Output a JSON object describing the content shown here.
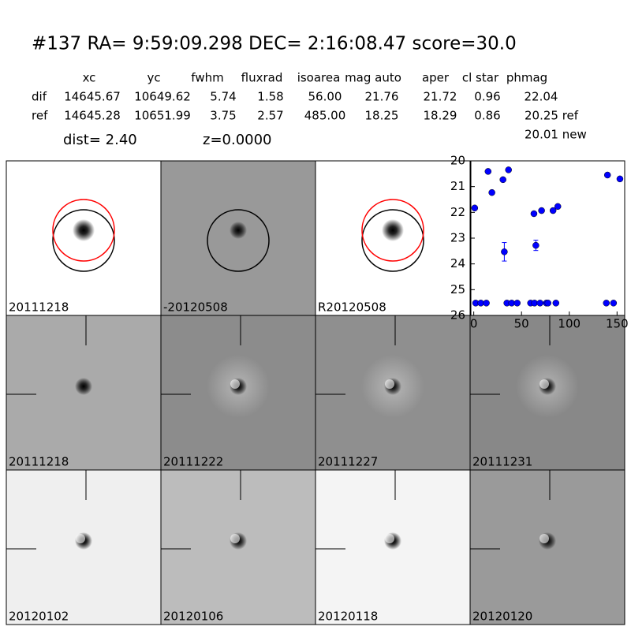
{
  "header": {
    "title": "#137   RA= 9:59:09.298 DEC= 2:16:08.47       score=30.0"
  },
  "table": {
    "columns": [
      "xc",
      "yc",
      "fwhm",
      "fluxrad",
      "isoarea",
      "mag auto",
      "aper",
      "cl star",
      "phmag"
    ],
    "rows": [
      {
        "label": "dif",
        "values": [
          "14645.67",
          "10649.62",
          "5.74",
          "1.58",
          "56.00",
          "21.76",
          "21.72",
          "0.96",
          "22.04"
        ]
      },
      {
        "label": "ref",
        "values": [
          "14645.28",
          "10651.99",
          "3.75",
          "2.57",
          "485.00",
          "18.25",
          "18.29",
          "0.86",
          "20.25 ref"
        ]
      }
    ],
    "extra": "20.01 new",
    "dist": "dist=  2.40",
    "z": "z=0.0000"
  },
  "panels": [
    {
      "label": "20111218",
      "color": "#000000"
    },
    {
      "label": "-20120508",
      "color": "#000000"
    },
    {
      "label": "R20120508",
      "color": "#000000"
    },
    {
      "label": "20111218",
      "color": "#ff0000"
    },
    {
      "label": "20111222",
      "color": "#000000"
    },
    {
      "label": "20111227",
      "color": "#000000"
    },
    {
      "label": "20111231",
      "color": "#000000"
    },
    {
      "label": "20120102",
      "color": "#000000"
    },
    {
      "label": "20120106",
      "color": "#000000"
    },
    {
      "label": "20120118",
      "color": "#000000"
    },
    {
      "label": "20120120",
      "color": "#000000"
    }
  ],
  "chart_data": {
    "type": "scatter",
    "inverted_y": true,
    "xlim": [
      -3,
      158
    ],
    "ylim": [
      20,
      26
    ],
    "xticks": [
      0,
      50,
      100,
      150
    ],
    "yticks": [
      20,
      21,
      22,
      23,
      24,
      25,
      26
    ],
    "series": [
      {
        "color": "#0000ff",
        "x": [
          1,
          15,
          19,
          30.6,
          36.4,
          32,
          63,
          65,
          71,
          83,
          88,
          2,
          7.4,
          13.2,
          34.7,
          39.7,
          45.5,
          59.5,
          63.6,
          69.4,
          76,
          77.7,
          86,
          138.8,
          146.3,
          140,
          153
        ],
        "values": [
          21.83,
          20.41,
          21.23,
          20.73,
          20.35,
          23.53,
          22.05,
          23.28,
          21.93,
          21.93,
          21.77,
          25.52,
          25.52,
          25.52,
          25.52,
          25.52,
          25.52,
          25.52,
          25.52,
          25.52,
          25.52,
          25.52,
          25.52,
          25.52,
          25.52,
          20.55,
          20.7
        ],
        "errors": [
          null,
          null,
          null,
          null,
          null,
          0.36,
          null,
          0.2,
          null,
          null,
          null,
          null,
          null,
          null,
          null,
          null,
          null,
          null,
          null,
          null,
          null,
          null,
          null,
          null,
          null,
          null,
          null
        ]
      }
    ]
  }
}
